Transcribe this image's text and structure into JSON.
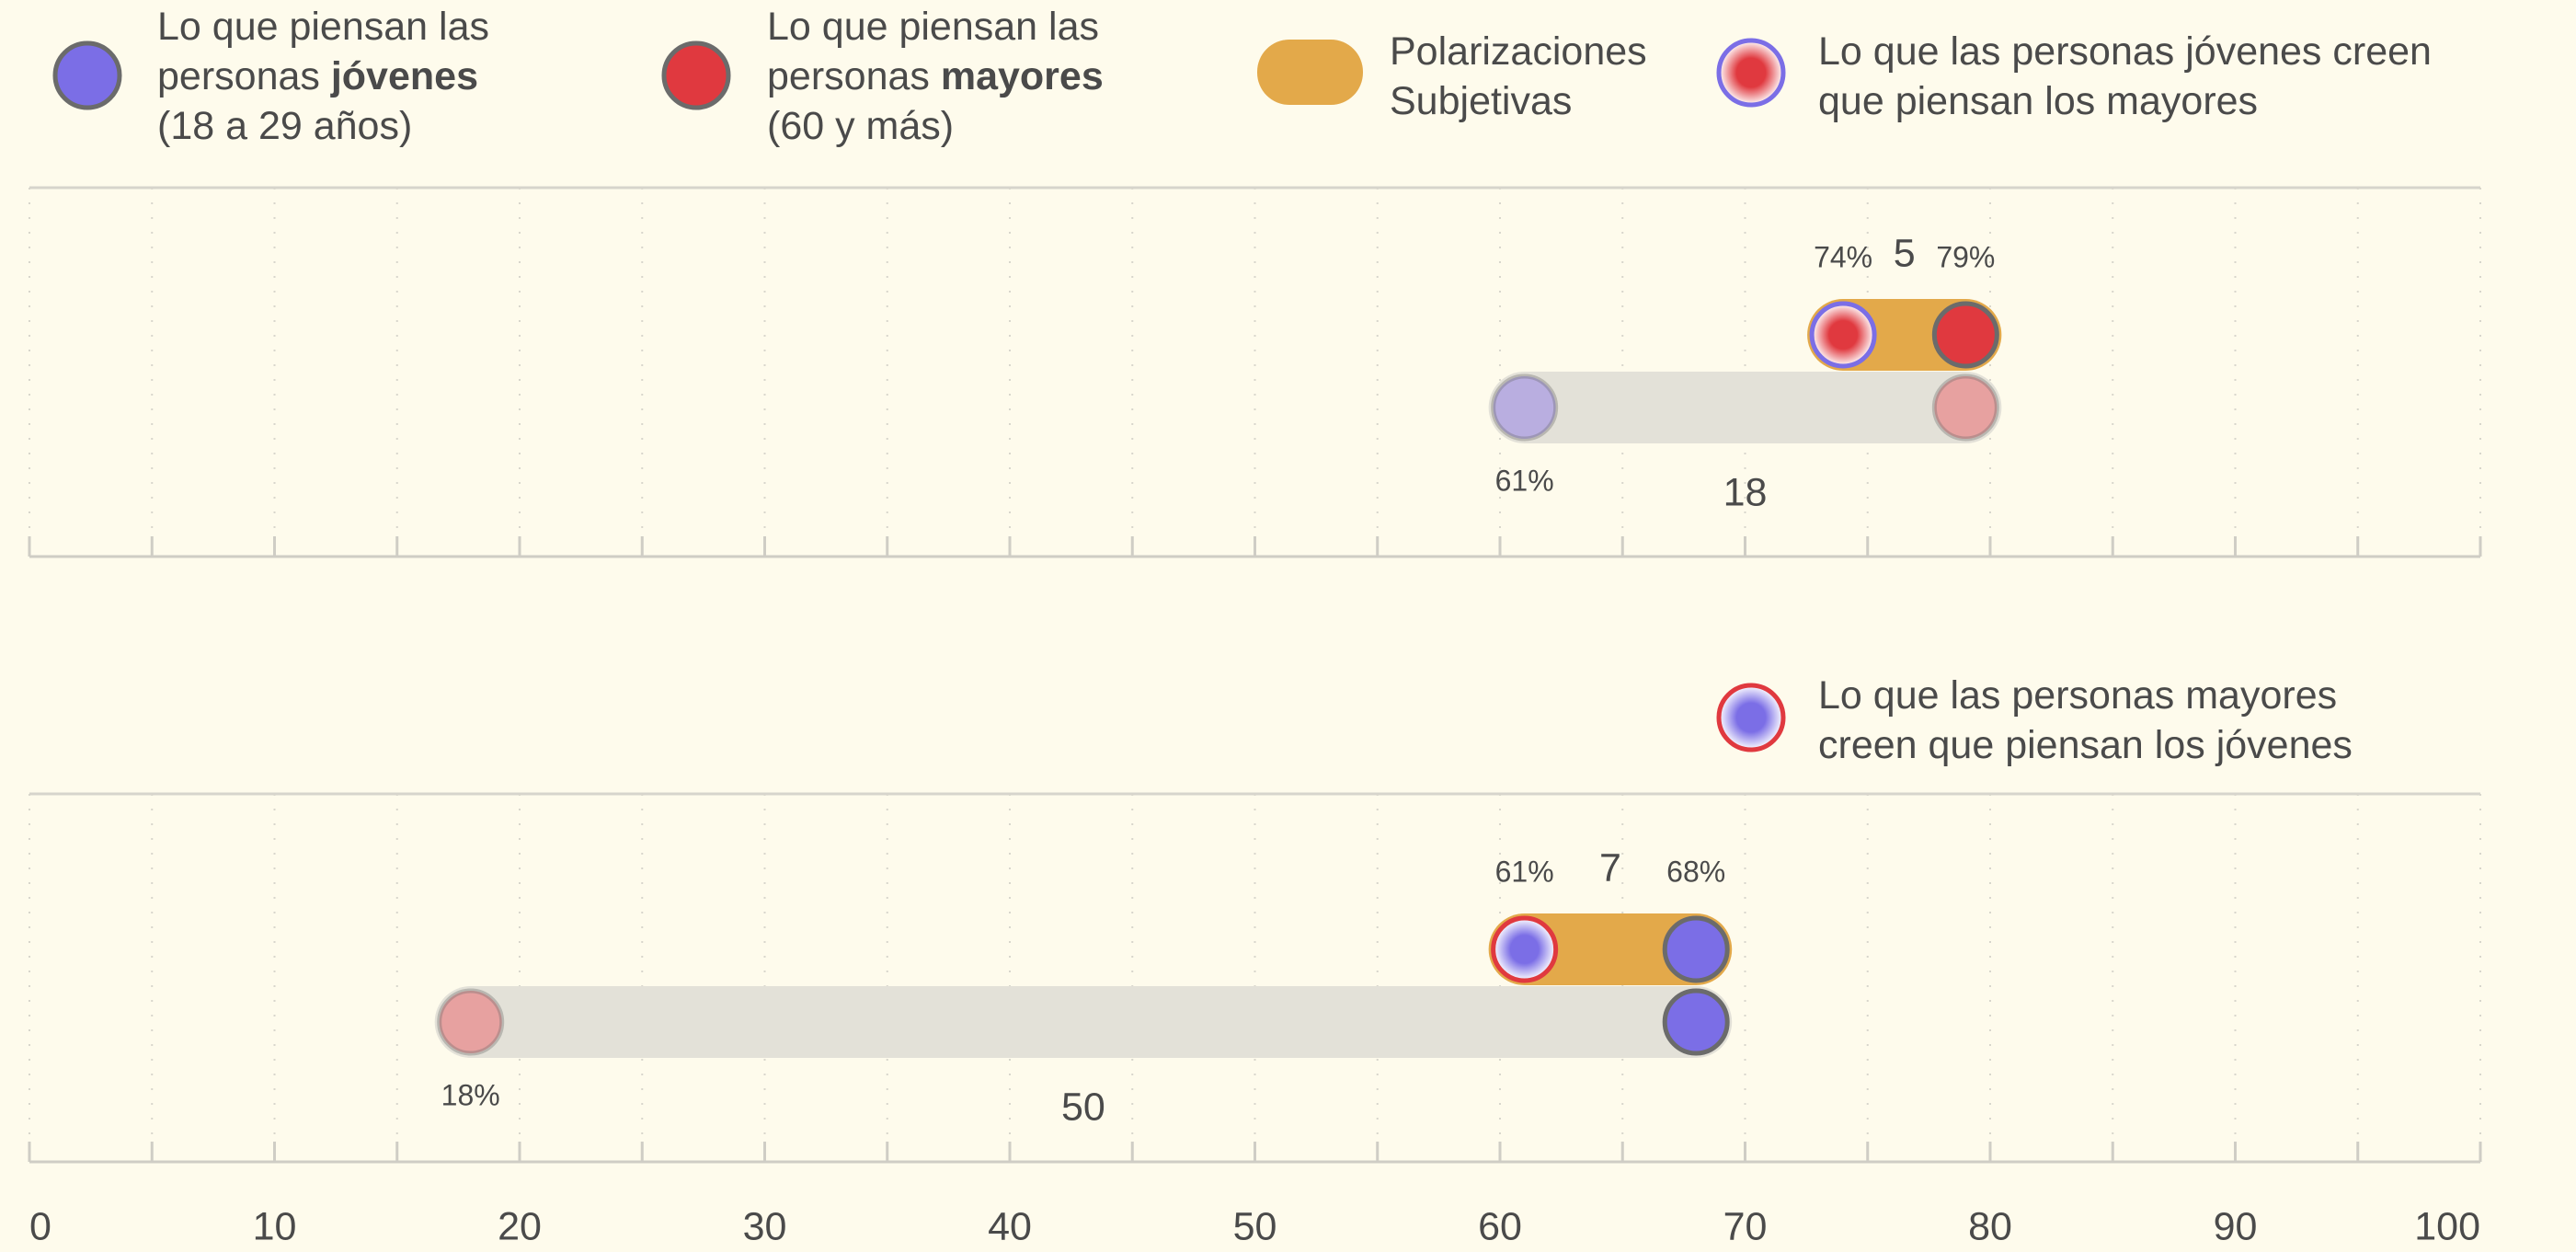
{
  "chart_data": {
    "type": "dumbbell",
    "xlim": [
      0,
      100
    ],
    "xticks": [
      0,
      10,
      20,
      30,
      40,
      50,
      60,
      70,
      80,
      90,
      100
    ],
    "xticks_minor": [
      5,
      15,
      25,
      35,
      45,
      55,
      65,
      75,
      85,
      95
    ],
    "grid": true,
    "gap_color": "#e3a94a",
    "track_color": "#e3e1d8",
    "legend": [
      {
        "marker": "#7b6ee6",
        "lines": [
          {
            "text": "Lo que piensan las"
          },
          {
            "text": "personas ",
            "bold": "jóvenes"
          },
          {
            "text": "(18 a 29 años)"
          }
        ]
      },
      {
        "marker": "#e0393f",
        "lines": [
          {
            "text": "Lo que piensan las"
          },
          {
            "text": "personas ",
            "bold": "mayores"
          },
          {
            "text": "(60 y más)"
          }
        ]
      },
      {
        "marker": "#e3a94a",
        "pill": true,
        "lines": [
          {
            "text": "Polarizaciones"
          },
          {
            "text": "Subjetivas"
          }
        ]
      },
      {
        "marker": {
          "center": "#e0393f",
          "ring": "#7b6ee6"
        },
        "lines": [
          {
            "text": "Lo que las personas jóvenes creen"
          },
          {
            "text": "que piensan los mayores"
          }
        ]
      }
    ],
    "panels": [
      {
        "perceived": {
          "values": [
            74,
            79
          ],
          "value_labels": [
            "74%",
            "79%"
          ],
          "gap": 5,
          "colors": [
            {
              "center": "#e0393f",
              "ring": "#7b6ee6"
            },
            "#e0393f"
          ]
        },
        "actual": {
          "values": [
            61,
            79
          ],
          "value_labels": [
            "61%",
            null
          ],
          "gap": 18,
          "colors": [
            "#b9aee0",
            "#e7a1a0"
          ]
        }
      },
      {
        "legend": {
          "marker": {
            "center": "#7b6ee6",
            "ring": "#e0393f"
          },
          "lines": [
            {
              "text": "Lo que las personas mayores"
            },
            {
              "text": "creen que piensan los jóvenes"
            }
          ]
        },
        "perceived": {
          "values": [
            61,
            68
          ],
          "value_labels": [
            "61%",
            "68%"
          ],
          "gap": 7,
          "colors": [
            {
              "center": "#7b6ee6",
              "ring": "#e0393f"
            },
            "#7b6ee6"
          ]
        },
        "actual": {
          "values": [
            18,
            68
          ],
          "value_labels": [
            "18%",
            null
          ],
          "gap": 50,
          "colors": [
            "#e7a1a0",
            "#7b6ee6"
          ]
        }
      }
    ]
  }
}
